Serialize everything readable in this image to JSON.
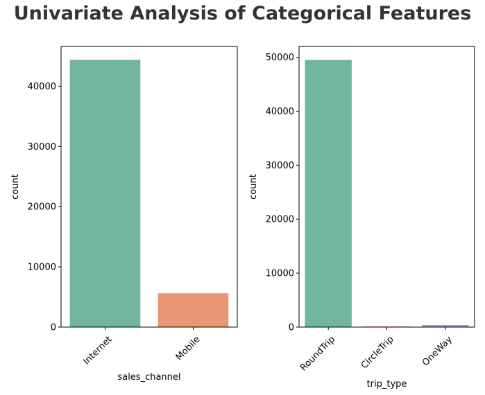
{
  "suptitle": "Univariate Analysis of Categorical Features",
  "colors": [
    "#72b6a1",
    "#e99675",
    "#95a3c3"
  ],
  "chart_data": [
    {
      "type": "bar",
      "categories": [
        "Internet",
        "Mobile"
      ],
      "values": [
        44382,
        5618
      ],
      "xlabel": "sales_channel",
      "ylabel": "count",
      "ylim": [
        0,
        46600
      ],
      "yticks": [
        0,
        10000,
        20000,
        30000,
        40000
      ],
      "grid": false
    },
    {
      "type": "bar",
      "categories": [
        "RoundTrip",
        "CircleTrip",
        "OneWay"
      ],
      "values": [
        49497,
        116,
        387
      ],
      "xlabel": "trip_type",
      "ylabel": "count",
      "ylim": [
        0,
        52000
      ],
      "yticks": [
        0,
        10000,
        20000,
        30000,
        40000,
        50000
      ],
      "grid": false
    }
  ]
}
